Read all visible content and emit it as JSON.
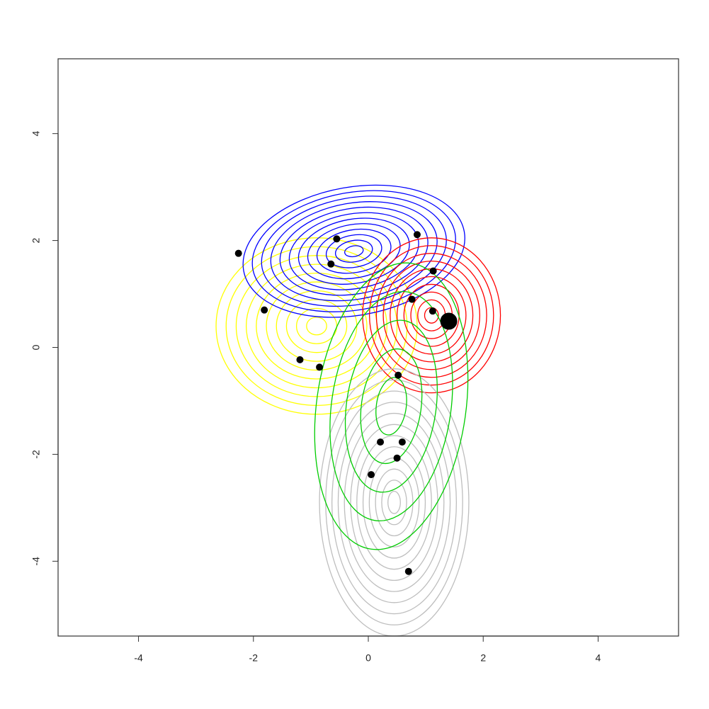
{
  "chart_data": {
    "type": "scatter",
    "xlim": [
      -5.4,
      5.4
    ],
    "ylim": [
      -5.4,
      5.4
    ],
    "xticks": [
      -4,
      -2,
      0,
      2,
      4
    ],
    "yticks": [
      -4,
      -2,
      0,
      2,
      4
    ],
    "contours": [
      {
        "color": "#ffff00",
        "center": [
          -0.9,
          0.4
        ],
        "radii": [
          1.75,
          1.65
        ],
        "angle": 0,
        "levels": 10
      },
      {
        "color": "#0000ff",
        "center": [
          -0.25,
          1.8
        ],
        "radii": [
          1.95,
          1.2
        ],
        "angle": 10,
        "levels": 12
      },
      {
        "color": "#ff0000",
        "center": [
          1.1,
          0.6
        ],
        "radii": [
          1.2,
          1.45
        ],
        "angle": 0,
        "levels": 10
      },
      {
        "color": "#bebebe",
        "center": [
          0.45,
          -2.9
        ],
        "radii": [
          1.3,
          2.5
        ],
        "angle": 0,
        "levels": 12
      },
      {
        "color": "#00cc00",
        "center": [
          0.4,
          -1.1
        ],
        "radii": [
          1.3,
          2.7
        ],
        "angle": -8,
        "levels": 5
      }
    ],
    "series": [
      {
        "color": "#000000",
        "size": 5,
        "x": [
          -2.26,
          -0.55,
          0.85,
          -0.65,
          1.13,
          -1.81,
          0.76,
          1.12,
          -1.19,
          -0.85,
          0.52,
          0.21,
          0.59,
          0.5,
          0.05,
          0.7
        ],
        "values": [
          1.76,
          2.03,
          2.11,
          1.56,
          1.43,
          0.7,
          0.9,
          0.68,
          -0.23,
          -0.37,
          -0.52,
          -1.77,
          -1.77,
          -2.07,
          -2.38,
          -4.19
        ]
      },
      {
        "color": "#000000",
        "size": 12,
        "x": [
          1.4
        ],
        "values": [
          0.49
        ]
      }
    ]
  }
}
